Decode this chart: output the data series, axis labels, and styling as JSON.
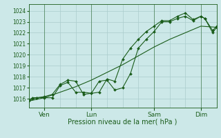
{
  "title": "",
  "xlabel": "Pression niveau de la mer( hPa )",
  "ylabel": "",
  "bg_color": "#cce8e8",
  "grid_color": "#aacccc",
  "line_color": "#1a5c1a",
  "xlim": [
    0,
    96
  ],
  "ylim": [
    1015.2,
    1024.6
  ],
  "yticks": [
    1016,
    1017,
    1018,
    1019,
    1020,
    1021,
    1022,
    1023,
    1024
  ],
  "xtick_positions": [
    8,
    32,
    64,
    88
  ],
  "xtick_labels": [
    "Ven",
    "Lun",
    "Sam",
    "Dim"
  ],
  "vline_positions": [
    8,
    32,
    64,
    88
  ],
  "series1_x": [
    0,
    8,
    16,
    24,
    32,
    40,
    48,
    56,
    64,
    72,
    80,
    88,
    96
  ],
  "series1_y": [
    1015.8,
    1016.1,
    1016.6,
    1017.1,
    1017.7,
    1018.4,
    1019.1,
    1019.9,
    1020.7,
    1021.4,
    1022.0,
    1022.6,
    1022.5
  ],
  "series2_x": [
    0,
    2,
    4,
    8,
    12,
    16,
    20,
    24,
    28,
    32,
    36,
    40,
    44,
    48,
    52,
    56,
    60,
    64,
    68,
    72,
    76,
    80,
    84,
    88,
    90,
    94,
    96
  ],
  "series2_y": [
    1015.9,
    1016.1,
    1016.1,
    1016.1,
    1016.1,
    1017.2,
    1017.5,
    1016.6,
    1016.6,
    1016.5,
    1017.6,
    1017.7,
    1016.8,
    1017.0,
    1018.3,
    1020.6,
    1021.4,
    1022.1,
    1023.0,
    1023.0,
    1023.3,
    1023.5,
    1023.1,
    1023.5,
    1023.3,
    1022.0,
    1022.5
  ],
  "series3_x": [
    0,
    2,
    4,
    8,
    12,
    16,
    20,
    24,
    28,
    32,
    36,
    40,
    44,
    48,
    52,
    56,
    60,
    64,
    68,
    72,
    76,
    80,
    84,
    88,
    90,
    94,
    96
  ],
  "series3_y": [
    1015.8,
    1016.0,
    1016.1,
    1016.2,
    1016.4,
    1017.3,
    1017.7,
    1017.6,
    1016.4,
    1016.5,
    1016.6,
    1017.8,
    1017.6,
    1019.6,
    1020.6,
    1021.4,
    1022.1,
    1022.6,
    1023.1,
    1023.1,
    1023.5,
    1023.8,
    1023.2,
    1023.5,
    1023.3,
    1022.2,
    1022.6
  ]
}
